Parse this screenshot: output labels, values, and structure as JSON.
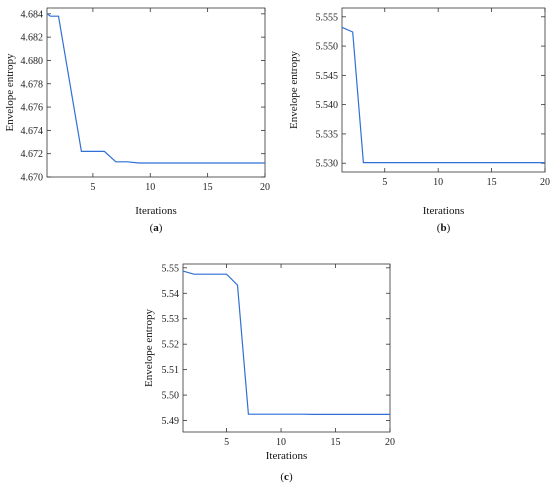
{
  "chart_data": [
    {
      "type": "line",
      "panel": "(a)",
      "panel_letter": "a",
      "xlabel": "Iterations",
      "ylabel": "Envelope entropy",
      "xlim": [
        1,
        20
      ],
      "ylim": [
        4.67,
        4.6845
      ],
      "xticks": [
        5,
        10,
        15,
        20
      ],
      "yticks": [
        4.67,
        4.672,
        4.674,
        4.676,
        4.678,
        4.68,
        4.682,
        4.684
      ],
      "ytick_labels": [
        "4.670",
        "4.672",
        "4.674",
        "4.676",
        "4.678",
        "4.680",
        "4.682",
        "4.684"
      ],
      "x": [
        1,
        1.3,
        2,
        4,
        5,
        6,
        7,
        8,
        9,
        10,
        11,
        12,
        13,
        14,
        15,
        16,
        17,
        18,
        19,
        20
      ],
      "y": [
        4.684,
        4.6838,
        4.6838,
        4.6722,
        4.6722,
        4.6722,
        4.6713,
        4.6713,
        4.6712,
        4.6712,
        4.6712,
        4.6712,
        4.6712,
        4.6712,
        4.6712,
        4.6712,
        4.6712,
        4.6712,
        4.6712,
        4.6712
      ],
      "color": "#2f6fd6"
    },
    {
      "type": "line",
      "panel": "(b)",
      "panel_letter": "b",
      "xlabel": "Iterations",
      "ylabel": "Envelope entropy",
      "xlim": [
        1,
        20
      ],
      "ylim": [
        5.5285,
        5.5565
      ],
      "xticks": [
        5,
        10,
        15,
        20
      ],
      "yticks": [
        5.53,
        5.535,
        5.54,
        5.545,
        5.55,
        5.555
      ],
      "ytick_labels": [
        "5.530",
        "5.535",
        "5.540",
        "5.545",
        "5.550",
        "5.555"
      ],
      "x": [
        1,
        2,
        3,
        4,
        5,
        6,
        7,
        8,
        9,
        10,
        11,
        12,
        13,
        14,
        15,
        16,
        17,
        18,
        19,
        20
      ],
      "y": [
        5.5532,
        5.5524,
        5.5301,
        5.5301,
        5.5301,
        5.5301,
        5.5301,
        5.5301,
        5.5301,
        5.5301,
        5.5301,
        5.5301,
        5.5301,
        5.5301,
        5.5301,
        5.5301,
        5.5301,
        5.5301,
        5.5301,
        5.5301
      ],
      "color": "#2f6fd6"
    },
    {
      "type": "line",
      "panel": "(c)",
      "panel_letter": "c",
      "xlabel": "Iterations",
      "ylabel": "Envelope entropy",
      "xlim": [
        1,
        20
      ],
      "ylim": [
        5.4855,
        5.5515
      ],
      "xticks": [
        5,
        10,
        15,
        20
      ],
      "yticks": [
        5.49,
        5.5,
        5.51,
        5.52,
        5.53,
        5.54,
        5.55
      ],
      "ytick_labels": [
        "5.49",
        "5.50",
        "5.51",
        "5.52",
        "5.53",
        "5.54",
        "5.55"
      ],
      "x": [
        1,
        2,
        3,
        4,
        5,
        6,
        7,
        8,
        9,
        10,
        11,
        12,
        13,
        14,
        15,
        16,
        17,
        18,
        19,
        20
      ],
      "y": [
        5.5487,
        5.5475,
        5.5475,
        5.5475,
        5.5475,
        5.5432,
        5.4925,
        5.4925,
        5.4925,
        5.4925,
        5.4925,
        5.4925,
        5.4924,
        5.4924,
        5.4924,
        5.4924,
        5.4924,
        5.4924,
        5.4924,
        5.4924
      ],
      "color": "#2f6fd6"
    }
  ]
}
